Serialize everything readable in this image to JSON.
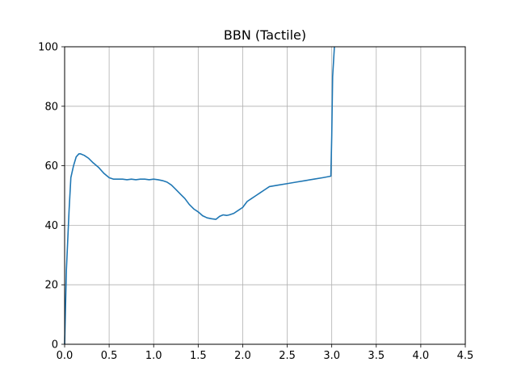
{
  "chart_data": {
    "type": "line",
    "title": "BBN (Tactile)",
    "xlabel": "",
    "ylabel": "",
    "xlim": [
      0,
      4.5
    ],
    "ylim": [
      0,
      100
    ],
    "xticks": [
      "0.0",
      "0.5",
      "1.0",
      "1.5",
      "2.0",
      "2.5",
      "3.0",
      "3.5",
      "4.0",
      "4.5"
    ],
    "yticks": [
      "0",
      "20",
      "40",
      "60",
      "80",
      "100"
    ],
    "grid": true,
    "series_color": "#1f77b4",
    "series": [
      {
        "x": [
          0.0,
          0.02,
          0.05,
          0.07,
          0.1,
          0.13,
          0.16,
          0.18,
          0.22,
          0.27,
          0.32,
          0.38,
          0.44,
          0.5,
          0.55,
          0.6,
          0.65,
          0.7,
          0.75,
          0.8,
          0.85,
          0.9,
          0.95,
          1.0,
          1.05,
          1.1,
          1.15,
          1.2,
          1.25,
          1.3,
          1.35,
          1.4,
          1.45,
          1.5,
          1.55,
          1.6,
          1.65,
          1.7,
          1.74,
          1.78,
          1.82,
          1.85,
          1.9,
          1.95,
          2.0,
          2.05,
          2.1,
          2.15,
          2.2,
          2.25,
          2.3,
          2.4,
          2.5,
          2.6,
          2.7,
          2.8,
          2.9,
          2.99,
          3.0,
          3.01,
          3.03
        ],
        "y": [
          0,
          25,
          45,
          56,
          60,
          63,
          64,
          64,
          63.5,
          62.5,
          61,
          59.5,
          57.5,
          56,
          55.5,
          55.5,
          55.5,
          55.3,
          55.5,
          55.3,
          55.5,
          55.5,
          55.3,
          55.5,
          55.3,
          55,
          54.5,
          53.5,
          52,
          50.5,
          49,
          47,
          45.5,
          44.5,
          43.2,
          42.5,
          42.2,
          42,
          43,
          43.5,
          43.3,
          43.5,
          44,
          45,
          46,
          48,
          49,
          50,
          51,
          52,
          53,
          53.5,
          54,
          54.5,
          55,
          55.5,
          56,
          56.5,
          70,
          90,
          100
        ]
      }
    ]
  }
}
